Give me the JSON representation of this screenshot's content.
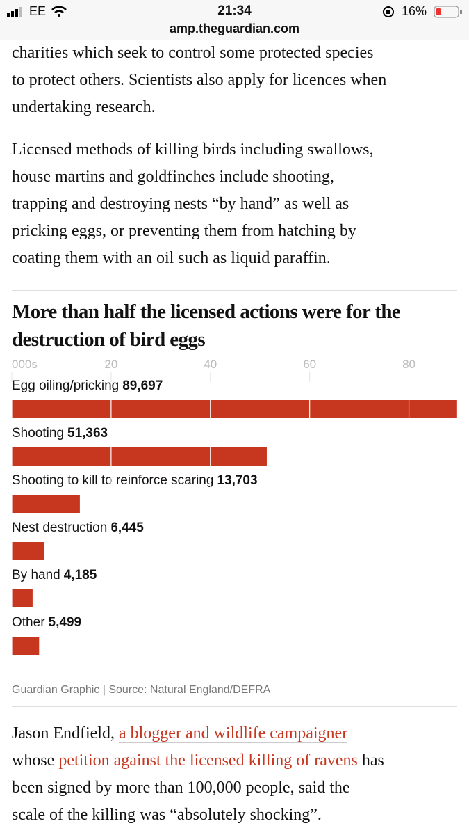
{
  "status_bar": {
    "carrier": "EE",
    "time": "21:34",
    "battery": "16%",
    "url": "amp.theguardian.com"
  },
  "article": {
    "paragraph_1": [
      "charities which seek to control some protected species",
      "to protect others. Scientists also apply for licences when",
      "undertaking research."
    ],
    "paragraph_2": [
      "Licensed methods of killing birds including swallows,",
      "house martins and goldfinches include shooting,",
      "trapping and destroying nests “by hand” as well as",
      "pricking eggs, or preventing them from hatching by",
      "coating them with an oil such as liquid paraffin."
    ],
    "paragraph_3": [
      [
        {
          "text": "Jason Endfield, "
        },
        {
          "text": "a blogger and wildlife campaigner",
          "link": true
        }
      ],
      [
        {
          "text": "whose "
        },
        {
          "text": "petition against the licensed killing of ravens",
          "link": true
        },
        {
          "text": " has"
        }
      ],
      [
        {
          "text": "been signed by more than 100,000 people, said the"
        }
      ],
      [
        {
          "text": "scale of the killing was “absolutely shocking”."
        }
      ]
    ]
  },
  "chart_data": {
    "type": "bar",
    "orientation": "horizontal",
    "title": "More than half the licensed actions were for the destruction of bird eggs",
    "categories": [
      "Egg oiling/pricking",
      "Shooting",
      "Shooting to kill to reinforce scaring",
      "Nest destruction",
      "By hand",
      "Other"
    ],
    "values": [
      89.697,
      51.363,
      13.703,
      6.445,
      4.185,
      5.499
    ],
    "value_labels": [
      "89,697",
      "51,363",
      "13,703",
      "6,445",
      "4,185",
      "5,499"
    ],
    "color": "#c7361f",
    "xlim": [
      0,
      90
    ],
    "xticks": [
      {
        "value": 0,
        "label": "000s"
      },
      20,
      40,
      60,
      80
    ],
    "grid": true,
    "source": "Guardian Graphic | Source: Natural England/DEFRA"
  }
}
